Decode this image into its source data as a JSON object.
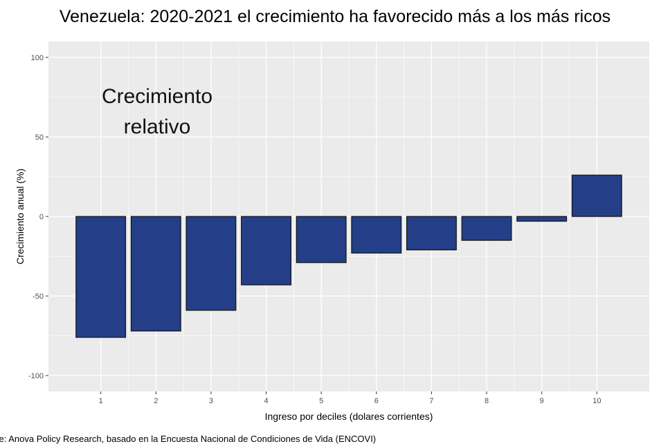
{
  "chart_data": {
    "type": "bar",
    "title": "Venezuela: 2020-2021 el crecimiento ha favorecido más a los más ricos",
    "annotation_lines": [
      "Crecimiento",
      "relativo"
    ],
    "xlabel": "Ingreso por deciles (dolares corrientes)",
    "ylabel": "Crecimiento anual (%)",
    "categories": [
      "1",
      "2",
      "3",
      "4",
      "5",
      "6",
      "7",
      "8",
      "9",
      "10"
    ],
    "values": [
      -76,
      -72,
      -59,
      -43,
      -29,
      -23,
      -21,
      -15,
      -3,
      26
    ],
    "ylim": [
      -110,
      110
    ],
    "yticks": [
      -100,
      -50,
      0,
      50,
      100
    ],
    "ytick_labels": [
      "-100",
      "-50",
      "0",
      "50",
      "100"
    ],
    "grid": true,
    "colors": {
      "bar": "#243f87",
      "bar_stroke": "#111111",
      "panel": "#ebebeb",
      "grid": "#ffffff"
    }
  },
  "source": "ce: Anova Policy Research, basado en la Encuesta Nacional de Condiciones de Vida (ENCOVI)"
}
